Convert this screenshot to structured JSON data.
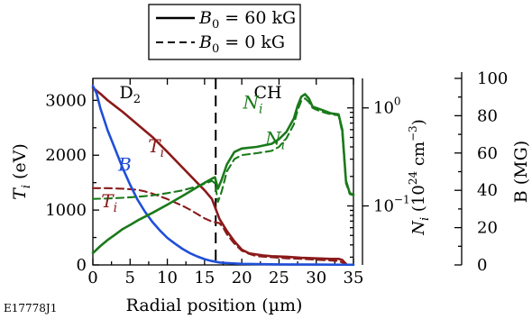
{
  "chart_data": {
    "type": "line",
    "figure_id": "E17778J1",
    "legend": [
      {
        "label": "B",
        "sub": "0",
        "value": " = 60 kG",
        "style": "solid"
      },
      {
        "label": "B",
        "sub": "0",
        "value": " = 0 kG",
        "style": "dashed"
      }
    ],
    "x_axis": {
      "label": "Radial position (µm)",
      "range": [
        0,
        35
      ],
      "ticks": [
        0,
        5,
        10,
        15,
        20,
        25,
        30,
        35
      ]
    },
    "left_axis": {
      "label_main": "T",
      "label_sub": "i",
      "label_unit": " (eV)",
      "range": [
        0,
        3400
      ],
      "ticks": [
        0,
        1000,
        2000,
        3000
      ]
    },
    "mid_axis": {
      "label_main": "N",
      "label_sub": "i",
      "label_unit": " (10",
      "label_sup": "24",
      "label_end": " cm",
      "label_sup2": "−3",
      "label_close": ")",
      "scale": "log",
      "range": [
        0.025,
        2.0
      ],
      "ticks": [
        {
          "base": "10",
          "exp": "0",
          "value": 1.0
        },
        {
          "base": "10",
          "exp": "−1",
          "value": 0.1
        }
      ]
    },
    "right_axis": {
      "label": "B (MG)",
      "range": [
        0,
        100
      ],
      "ticks": [
        0,
        20,
        40,
        60,
        80,
        100
      ]
    },
    "regions": [
      {
        "label_main": "D",
        "label_sub": "2",
        "label_x": 5
      },
      {
        "label_main": "CH",
        "label_sub": "",
        "label_x": 23.5
      }
    ],
    "boundary_x": 16.5,
    "annotations": [
      {
        "main": "T",
        "sub": "i",
        "x": 8.5,
        "y": 2050,
        "color": "#8b1a1a"
      },
      {
        "main": "T",
        "sub": "i",
        "x": 2.2,
        "y": 1050,
        "color": "#8b1a1a"
      },
      {
        "main": "B",
        "sub": "",
        "x": 4.3,
        "y": 1720,
        "color": "#1f4fd8"
      },
      {
        "main": "N",
        "sub": "i",
        "x": 21.5,
        "y": 0.98,
        "color": "#1a7a1a",
        "axis": "N"
      },
      {
        "main": "N",
        "sub": "i",
        "x": 24.5,
        "y": 0.42,
        "color": "#1a7a1a",
        "axis": "N"
      }
    ],
    "series": [
      {
        "name": "T_i, B0 = 60 kG",
        "axis": "T",
        "color": "#8b1a1a",
        "dashed": false,
        "x": [
          0,
          1,
          2,
          4,
          6,
          8,
          10,
          12,
          14,
          15,
          16,
          17,
          18,
          19,
          20,
          21,
          22,
          23,
          24,
          26,
          28,
          30,
          32,
          33,
          33.5,
          34
        ],
        "y": [
          3230,
          3120,
          3000,
          2790,
          2560,
          2330,
          2060,
          1780,
          1500,
          1360,
          1200,
          840,
          620,
          430,
          280,
          210,
          190,
          170,
          160,
          150,
          130,
          120,
          110,
          110,
          90,
          20
        ]
      },
      {
        "name": "T_i, B0 = 0 kG",
        "axis": "T",
        "color": "#8b1a1a",
        "dashed": true,
        "x": [
          0,
          2,
          4,
          6,
          7,
          8,
          9,
          10,
          11,
          12,
          13,
          14,
          15,
          16,
          17,
          17.5,
          18,
          19,
          20,
          21,
          22,
          24,
          26,
          28,
          30,
          32,
          33,
          34
        ],
        "y": [
          1400,
          1400,
          1390,
          1370,
          1340,
          1300,
          1250,
          1200,
          1140,
          1080,
          1010,
          930,
          850,
          790,
          760,
          680,
          560,
          390,
          260,
          200,
          160,
          140,
          120,
          110,
          95,
          80,
          70,
          20
        ]
      },
      {
        "name": "B, B0 = 60 kG",
        "axis": "B",
        "color": "#1f4fd8",
        "dashed": false,
        "x": [
          0,
          0.5,
          1,
          2,
          3,
          4,
          5,
          6,
          7,
          8,
          9,
          10,
          11,
          12,
          13,
          14,
          15,
          16,
          17,
          18,
          20,
          25,
          30,
          35
        ],
        "y": [
          96,
          92,
          84,
          72,
          62,
          52,
          43,
          35,
          28.5,
          23,
          18.5,
          14.5,
          11.5,
          8.7,
          6.4,
          4.6,
          3.1,
          2.1,
          1.3,
          1.0,
          0.6,
          0.3,
          0.2,
          0.1
        ]
      },
      {
        "name": "N_i, B0 = 60 kG",
        "axis": "N",
        "color": "#1a7a1a",
        "dashed": false,
        "x": [
          0,
          1,
          2,
          3,
          4,
          5,
          6,
          8,
          10,
          12,
          14,
          15,
          16,
          16.4,
          16.8,
          17.3,
          18,
          19,
          20,
          22,
          24,
          25,
          26,
          27,
          27.5,
          28,
          28.5,
          29,
          29.5,
          30,
          31,
          32,
          33,
          33.5,
          34,
          34.5,
          35
        ],
        "y": [
          0.033,
          0.039,
          0.045,
          0.051,
          0.058,
          0.064,
          0.071,
          0.085,
          0.103,
          0.126,
          0.155,
          0.172,
          0.19,
          0.196,
          0.15,
          0.185,
          0.265,
          0.355,
          0.385,
          0.4,
          0.43,
          0.48,
          0.57,
          0.78,
          1.05,
          1.3,
          1.38,
          1.25,
          1.03,
          1.0,
          0.94,
          0.88,
          0.86,
          0.6,
          0.18,
          0.135,
          0.13
        ]
      },
      {
        "name": "N_i, B0 = 0 kG",
        "axis": "N",
        "color": "#1a7a1a",
        "dashed": true,
        "x": [
          0,
          2,
          4,
          6,
          8,
          10,
          12,
          14,
          15,
          16,
          16.4,
          16.8,
          17.3,
          18,
          19,
          20,
          22,
          24,
          25,
          26,
          27,
          27.5,
          28,
          28.5,
          29,
          29.5,
          30,
          31,
          32,
          33,
          33.5,
          34,
          34.5,
          35
        ],
        "y": [
          0.118,
          0.119,
          0.121,
          0.124,
          0.128,
          0.135,
          0.144,
          0.158,
          0.168,
          0.18,
          0.17,
          0.11,
          0.14,
          0.225,
          0.3,
          0.33,
          0.345,
          0.365,
          0.4,
          0.49,
          0.68,
          0.95,
          1.18,
          1.25,
          1.15,
          1.0,
          0.96,
          0.9,
          0.86,
          0.84,
          0.56,
          0.17,
          0.132,
          0.128
        ]
      }
    ]
  }
}
